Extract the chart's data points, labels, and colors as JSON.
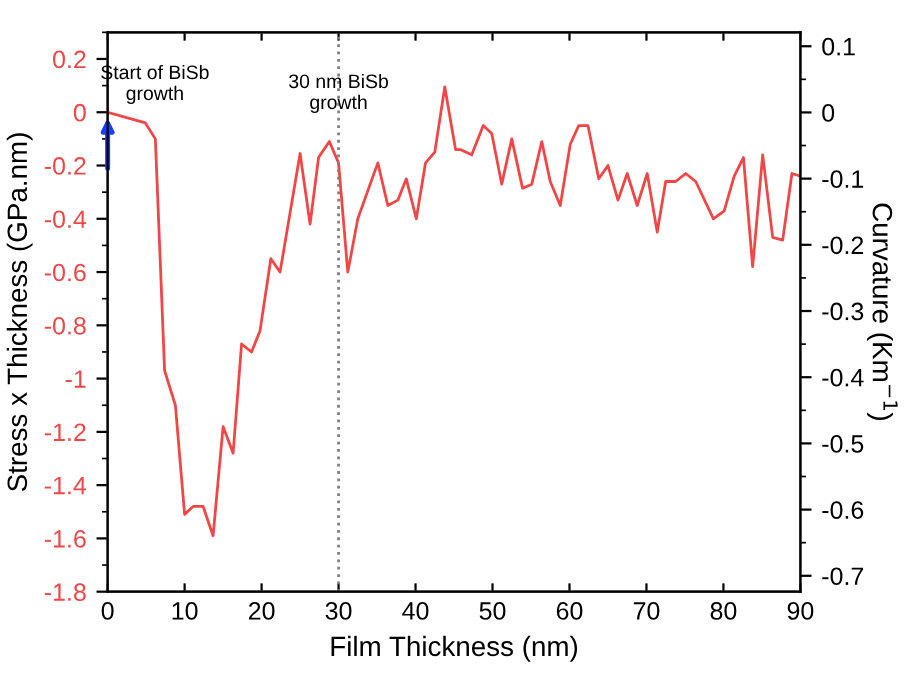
{
  "chart_data": {
    "type": "line",
    "xlabel": "Film Thickness (nm)",
    "ylabel": "Stress x Thickness (GPa.nm)",
    "y2label": "Curvature (Km$^{−1}$)",
    "x": [
      0,
      4.9,
      6.2,
      7.4,
      8.8,
      10.0,
      11.1,
      12.4,
      13.7,
      15.0,
      16.3,
      17.4,
      18.7,
      19.8,
      21.2,
      22.4,
      25.0,
      26.3,
      27.4,
      28.8,
      30.0,
      31.2,
      32.5,
      35.1,
      36.4,
      37.7,
      38.8,
      40.1,
      41.3,
      42.5,
      43.8,
      45.2,
      45.8,
      47.3,
      48.8,
      49.9,
      51.2,
      52.5,
      53.9,
      55.1,
      56.4,
      57.5,
      58.8,
      60.1,
      61.2,
      62.4,
      63.8,
      65.0,
      66.3,
      67.5,
      68.8,
      70.1,
      71.4,
      72.5,
      73.8,
      75.1,
      76.4,
      78.7,
      80.1,
      81.4,
      82.6,
      83.8,
      85.1,
      86.4,
      87.7,
      88.9,
      90.0
    ],
    "series": [
      {
        "color": "#f04646",
        "values": [
          0,
          -0.04,
          -0.1,
          -0.97,
          -1.1,
          -1.51,
          -1.48,
          -1.48,
          -1.59,
          -1.18,
          -1.28,
          -0.87,
          -0.9,
          -0.82,
          -0.55,
          -0.6,
          -0.155,
          -0.42,
          -0.17,
          -0.11,
          -0.19,
          -0.6,
          -0.4,
          -0.19,
          -0.35,
          -0.33,
          -0.25,
          -0.4,
          -0.19,
          -0.15,
          0.095,
          -0.14,
          -0.14,
          -0.16,
          -0.05,
          -0.08,
          -0.27,
          -0.1,
          -0.285,
          -0.27,
          -0.11,
          -0.26,
          -0.35,
          -0.12,
          -0.05,
          -0.05,
          -0.25,
          -0.2,
          -0.33,
          -0.23,
          -0.35,
          -0.23,
          -0.45,
          -0.26,
          -0.26,
          -0.23,
          -0.26,
          -0.4,
          -0.37,
          -0.24,
          -0.17,
          -0.58,
          -0.16,
          -0.47,
          -0.48,
          -0.23,
          -0.24
        ]
      }
    ],
    "xlim": [
      0,
      90
    ],
    "xticks": [
      0,
      10,
      20,
      30,
      40,
      50,
      60,
      70,
      80,
      90
    ],
    "ylim": [
      -1.8,
      0.3
    ],
    "yticks": [
      -1.8,
      -1.6,
      -1.4,
      -1.2,
      -1,
      -0.8,
      -0.6,
      -0.4,
      -0.2,
      0,
      0.2
    ],
    "y2lim": [
      -0.724,
      0.121
    ],
    "y2ticks": [
      -0.7,
      -0.6,
      -0.5,
      -0.4,
      -0.3,
      -0.2,
      -0.1,
      0,
      0.1
    ],
    "ref_lines": [
      {
        "axis": "x",
        "value": 30,
        "label": "30 nm BiSb growth",
        "color": "#808080",
        "line_style": "dotted"
      }
    ],
    "annotations": [
      {
        "text": "Start of BiSb growth",
        "x": 0,
        "y": 0
      }
    ],
    "grid": false
  }
}
